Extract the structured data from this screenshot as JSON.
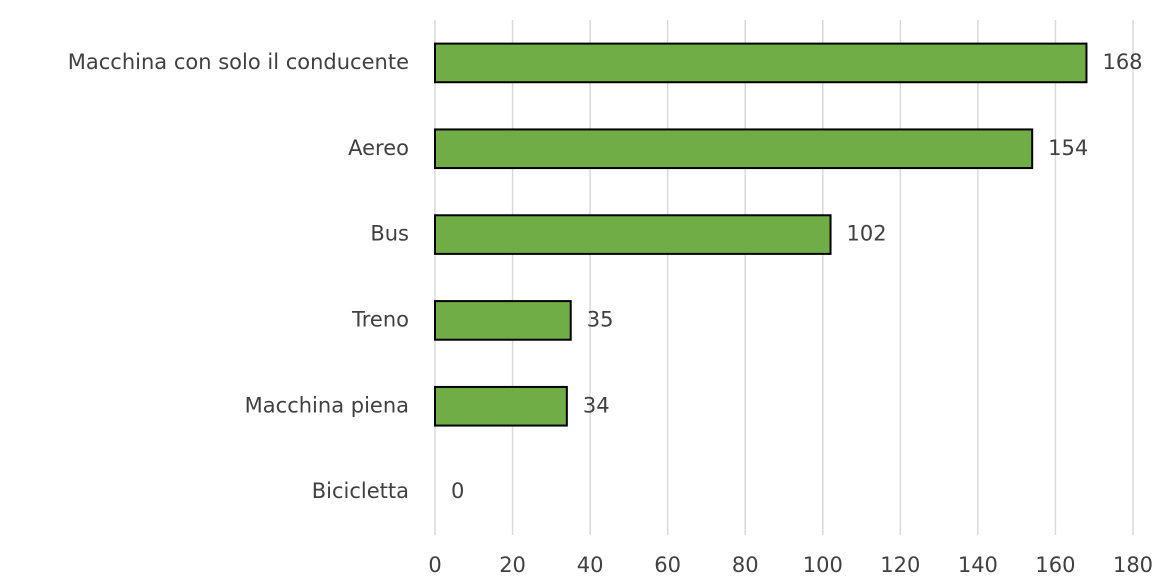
{
  "chart_data": {
    "type": "bar",
    "orientation": "horizontal",
    "categories": [
      "Macchina con solo il conducente",
      "Aereo",
      "Bus",
      "Treno",
      "Macchina piena",
      "Bicicletta"
    ],
    "values": [
      168,
      154,
      102,
      35,
      34,
      0
    ],
    "color": "#70ad47",
    "edge_color": "#000000",
    "xlim": [
      0,
      180
    ],
    "xticks": [
      0,
      20,
      40,
      60,
      80,
      100,
      120,
      140,
      160,
      180
    ],
    "grid": true
  }
}
